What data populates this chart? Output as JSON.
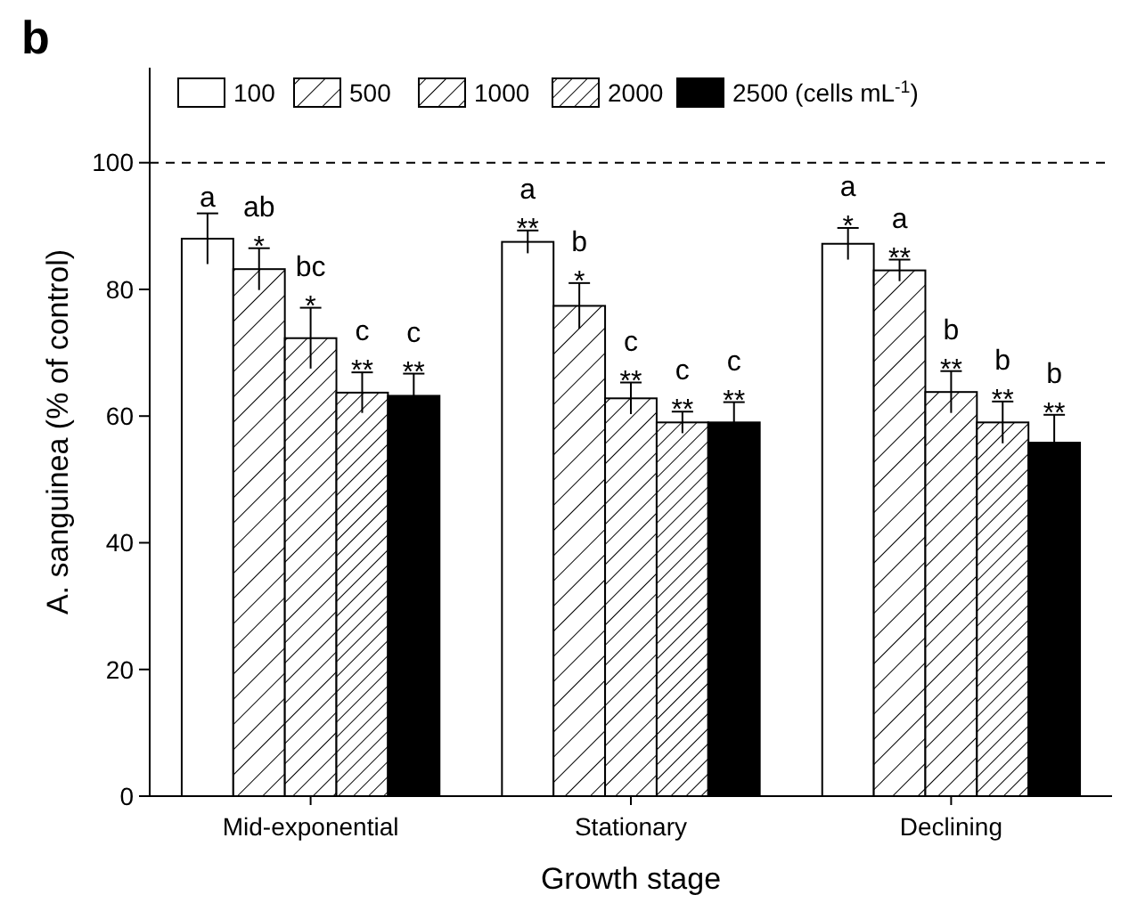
{
  "chart_data": {
    "type": "bar",
    "title": "b",
    "xlabel": "Growth stage",
    "ylabel": "A. sanguinea (% of control)",
    "categories": [
      "Mid-exponential",
      "Stationary",
      "Declining"
    ],
    "series": [
      {
        "name": "100",
        "color": "#ffffff",
        "values": [
          88,
          87.5,
          87.2
        ],
        "errors": [
          4,
          1.8,
          2.5
        ],
        "value_labels": [
          "a",
          "a\n**",
          "a\n*"
        ]
      },
      {
        "name": "500",
        "color": "#000000",
        "values": [
          83.2,
          77.4,
          83
        ],
        "errors": [
          3.3,
          3.6,
          1.7
        ],
        "value_labels": [
          "ab\n*",
          "b\n*",
          "a\n**"
        ]
      },
      {
        "name": "1000",
        "color": "#000000",
        "values": [
          72.3,
          62.8,
          63.8
        ],
        "errors": [
          4.8,
          2.5,
          3.3
        ],
        "value_labels": [
          "bc\n*",
          "c\n**",
          "b\n**"
        ]
      },
      {
        "name": "2000",
        "color": "#000000",
        "values": [
          63.7,
          59,
          59
        ],
        "errors": [
          3.2,
          1.7,
          3.3
        ],
        "value_labels": [
          "c\n**",
          "c\n**",
          "b\n**"
        ]
      },
      {
        "name": "2500 (cells mL$^{-1}$)",
        "color": "#000000",
        "values": [
          63.2,
          59,
          55.8
        ],
        "errors": [
          3.5,
          3.2,
          4.4
        ],
        "value_labels": [
          "c\n**",
          "c\n**",
          "b\n**"
        ]
      }
    ],
    "ylim": [
      0,
      115
    ],
    "yticks": [
      0,
      20,
      40,
      60,
      80,
      100
    ],
    "ref_lines": [
      {
        "axis": "y",
        "value": 100,
        "label": null,
        "line_style": "dashed",
        "color": "#000000"
      }
    ],
    "legend": "top",
    "grid": false
  }
}
